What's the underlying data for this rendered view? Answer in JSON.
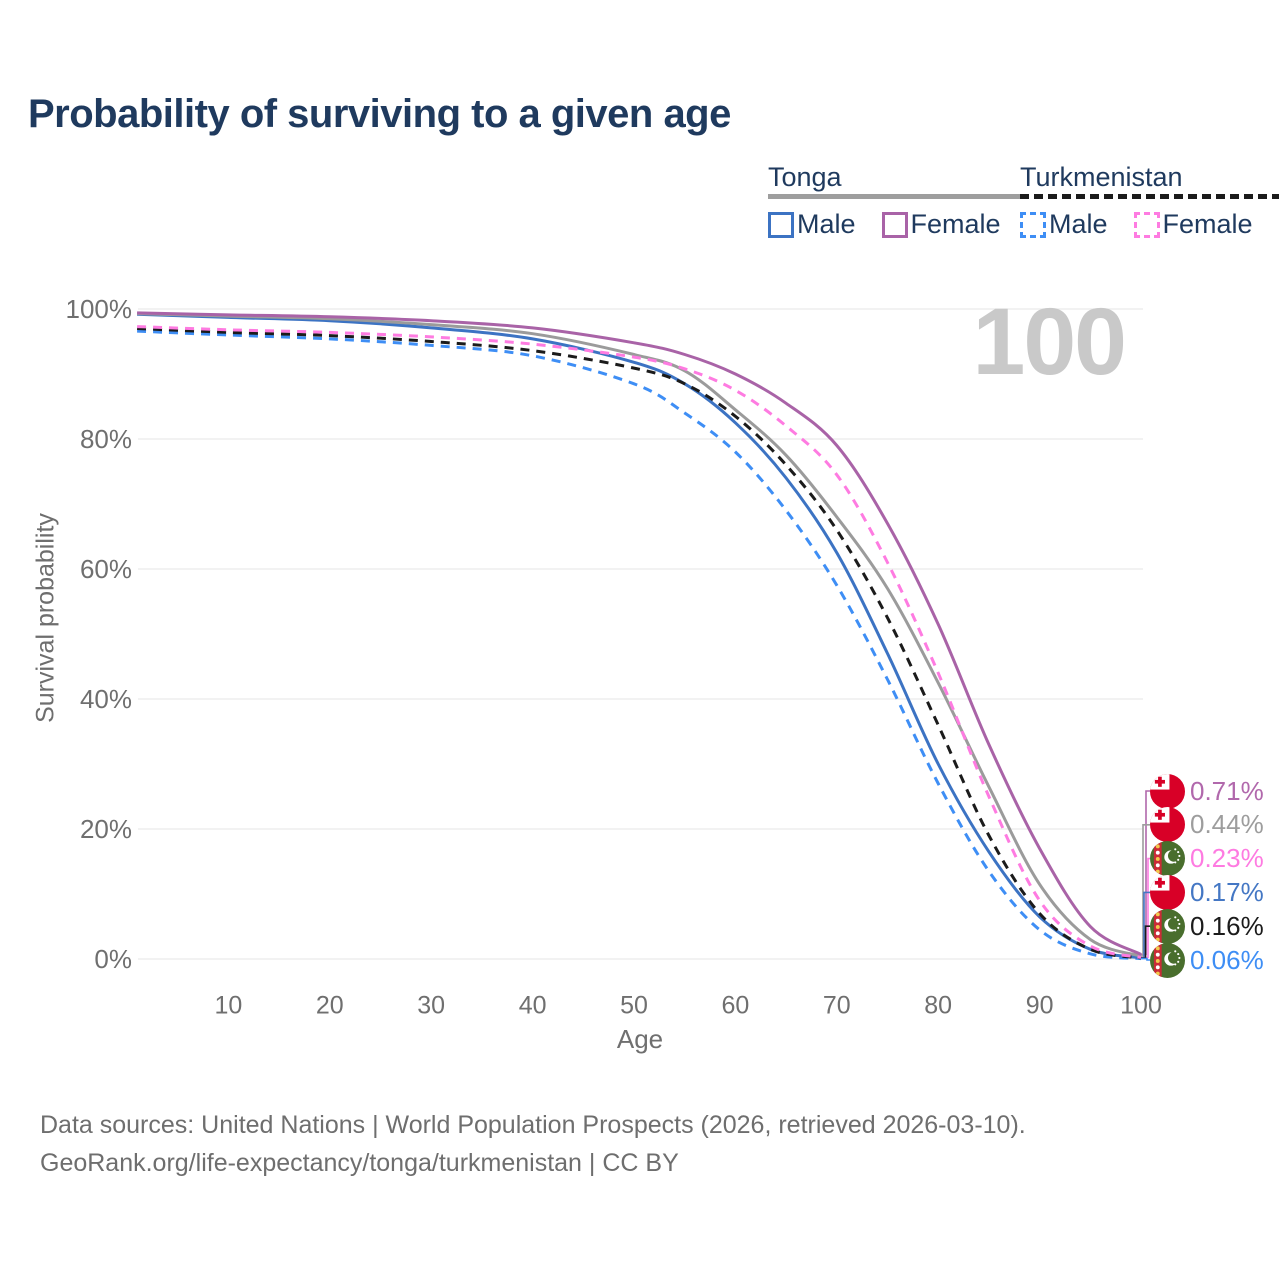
{
  "title": "Probability of surviving to a given age",
  "watermark": "100",
  "legend": {
    "groups": [
      {
        "label": "Tonga",
        "line_style": "solid",
        "underline_color": "#9e9e9e",
        "items": [
          {
            "label": "Male",
            "color": "#3c73c3",
            "dashed": false
          },
          {
            "label": "Female",
            "color": "#a963a7",
            "dashed": false
          }
        ]
      },
      {
        "label": "Turkmenistan",
        "line_style": "dashed",
        "underline_color": "#1b1b1b",
        "items": [
          {
            "label": "Male",
            "color": "#3e8ef5",
            "dashed": true
          },
          {
            "label": "Female",
            "color": "#fe7be1",
            "dashed": true
          }
        ]
      }
    ]
  },
  "chart_data": {
    "type": "line",
    "title": "Probability of surviving to a given age",
    "xlabel": "Age",
    "ylabel": "Survival probability",
    "xlim": [
      0,
      100
    ],
    "ylim": [
      0,
      100
    ],
    "grid": "horizontal",
    "x_ticks": [
      10,
      20,
      30,
      40,
      50,
      60,
      70,
      80,
      90,
      100
    ],
    "y_ticks": [
      {
        "value": 0,
        "label": "0%"
      },
      {
        "value": 20,
        "label": "20%"
      },
      {
        "value": 40,
        "label": "40%"
      },
      {
        "value": 60,
        "label": "60%"
      },
      {
        "value": 80,
        "label": "80%"
      },
      {
        "value": 100,
        "label": "100%"
      }
    ],
    "x": [
      1,
      10,
      20,
      30,
      40,
      50,
      55,
      60,
      65,
      70,
      75,
      80,
      85,
      90,
      95,
      100
    ],
    "series": [
      {
        "id": "turkmenistan-male",
        "name": "Turkmenistan Male",
        "country": "turkmenistan",
        "color": "#3e8ef5",
        "dashed": true,
        "values": [
          96.6,
          96.0,
          95.4,
          94.4,
          92.8,
          88.5,
          84.0,
          78.0,
          69.0,
          57.5,
          43.0,
          27.0,
          13.5,
          4.5,
          0.8,
          0.06
        ]
      },
      {
        "id": "tonga-male",
        "name": "Tonga Male",
        "country": "tonga",
        "color": "#3c73c3",
        "dashed": false,
        "values": [
          99.2,
          98.7,
          98.2,
          97.1,
          95.4,
          91.8,
          88.5,
          82.5,
          74.0,
          62.5,
          47.0,
          30.0,
          16.5,
          6.5,
          1.5,
          0.17
        ]
      },
      {
        "id": "turkmenistan-total",
        "name": "Turkmenistan",
        "country": "turkmenistan",
        "color": "#1b1b1b",
        "dashed": true,
        "values": [
          97.0,
          96.4,
          95.9,
          95.0,
          93.6,
          90.9,
          88.5,
          83.5,
          76.0,
          66.0,
          52.5,
          36.0,
          19.0,
          7.0,
          1.5,
          0.16
        ]
      },
      {
        "id": "tonga-total",
        "name": "Tonga",
        "country": "tonga",
        "color": "#9b9b9b",
        "dashed": false,
        "values": [
          99.3,
          98.9,
          98.5,
          97.6,
          96.2,
          93.0,
          90.5,
          84.5,
          77.5,
          68.0,
          57.0,
          42.5,
          26.5,
          11.5,
          3.0,
          0.44
        ]
      },
      {
        "id": "turkmenistan-female",
        "name": "Turkmenistan Female",
        "country": "turkmenistan",
        "color": "#fe7be1",
        "dashed": true,
        "values": [
          97.3,
          96.8,
          96.4,
          95.7,
          94.6,
          92.6,
          90.8,
          87.5,
          82.0,
          74.5,
          61.0,
          44.0,
          25.0,
          9.0,
          2.0,
          0.23
        ]
      },
      {
        "id": "tonga-female",
        "name": "Tonga Female",
        "country": "tonga",
        "color": "#a963a7",
        "dashed": false,
        "values": [
          99.4,
          99.1,
          98.8,
          98.2,
          97.1,
          94.8,
          93.0,
          90.0,
          85.5,
          79.0,
          67.0,
          51.5,
          33.0,
          17.0,
          5.0,
          0.71
        ]
      }
    ]
  },
  "end_labels": [
    {
      "series": "tonga-female",
      "value": "0.71%",
      "flag": "tonga",
      "color": "#b168ac"
    },
    {
      "series": "tonga-total",
      "value": "0.44%",
      "flag": "tonga",
      "color": "#9d9d9d"
    },
    {
      "series": "turkmenistan-female",
      "value": "0.23%",
      "flag": "turkmenistan",
      "color": "#fe7be1"
    },
    {
      "series": "tonga-male",
      "value": "0.17%",
      "flag": "tonga",
      "color": "#4477c4"
    },
    {
      "series": "turkmenistan-total",
      "value": "0.16%",
      "flag": "turkmenistan",
      "color": "#1b1b1b"
    },
    {
      "series": "turkmenistan-male",
      "value": "0.06%",
      "flag": "turkmenistan",
      "color": "#3e8ef5"
    }
  ],
  "sources": {
    "line1": "Data sources: United Nations | World Population Prospects (2026, retrieved 2026-03-10).",
    "line2": "GeoRank.org/life-expectancy/tonga/turkmenistan | CC BY"
  }
}
